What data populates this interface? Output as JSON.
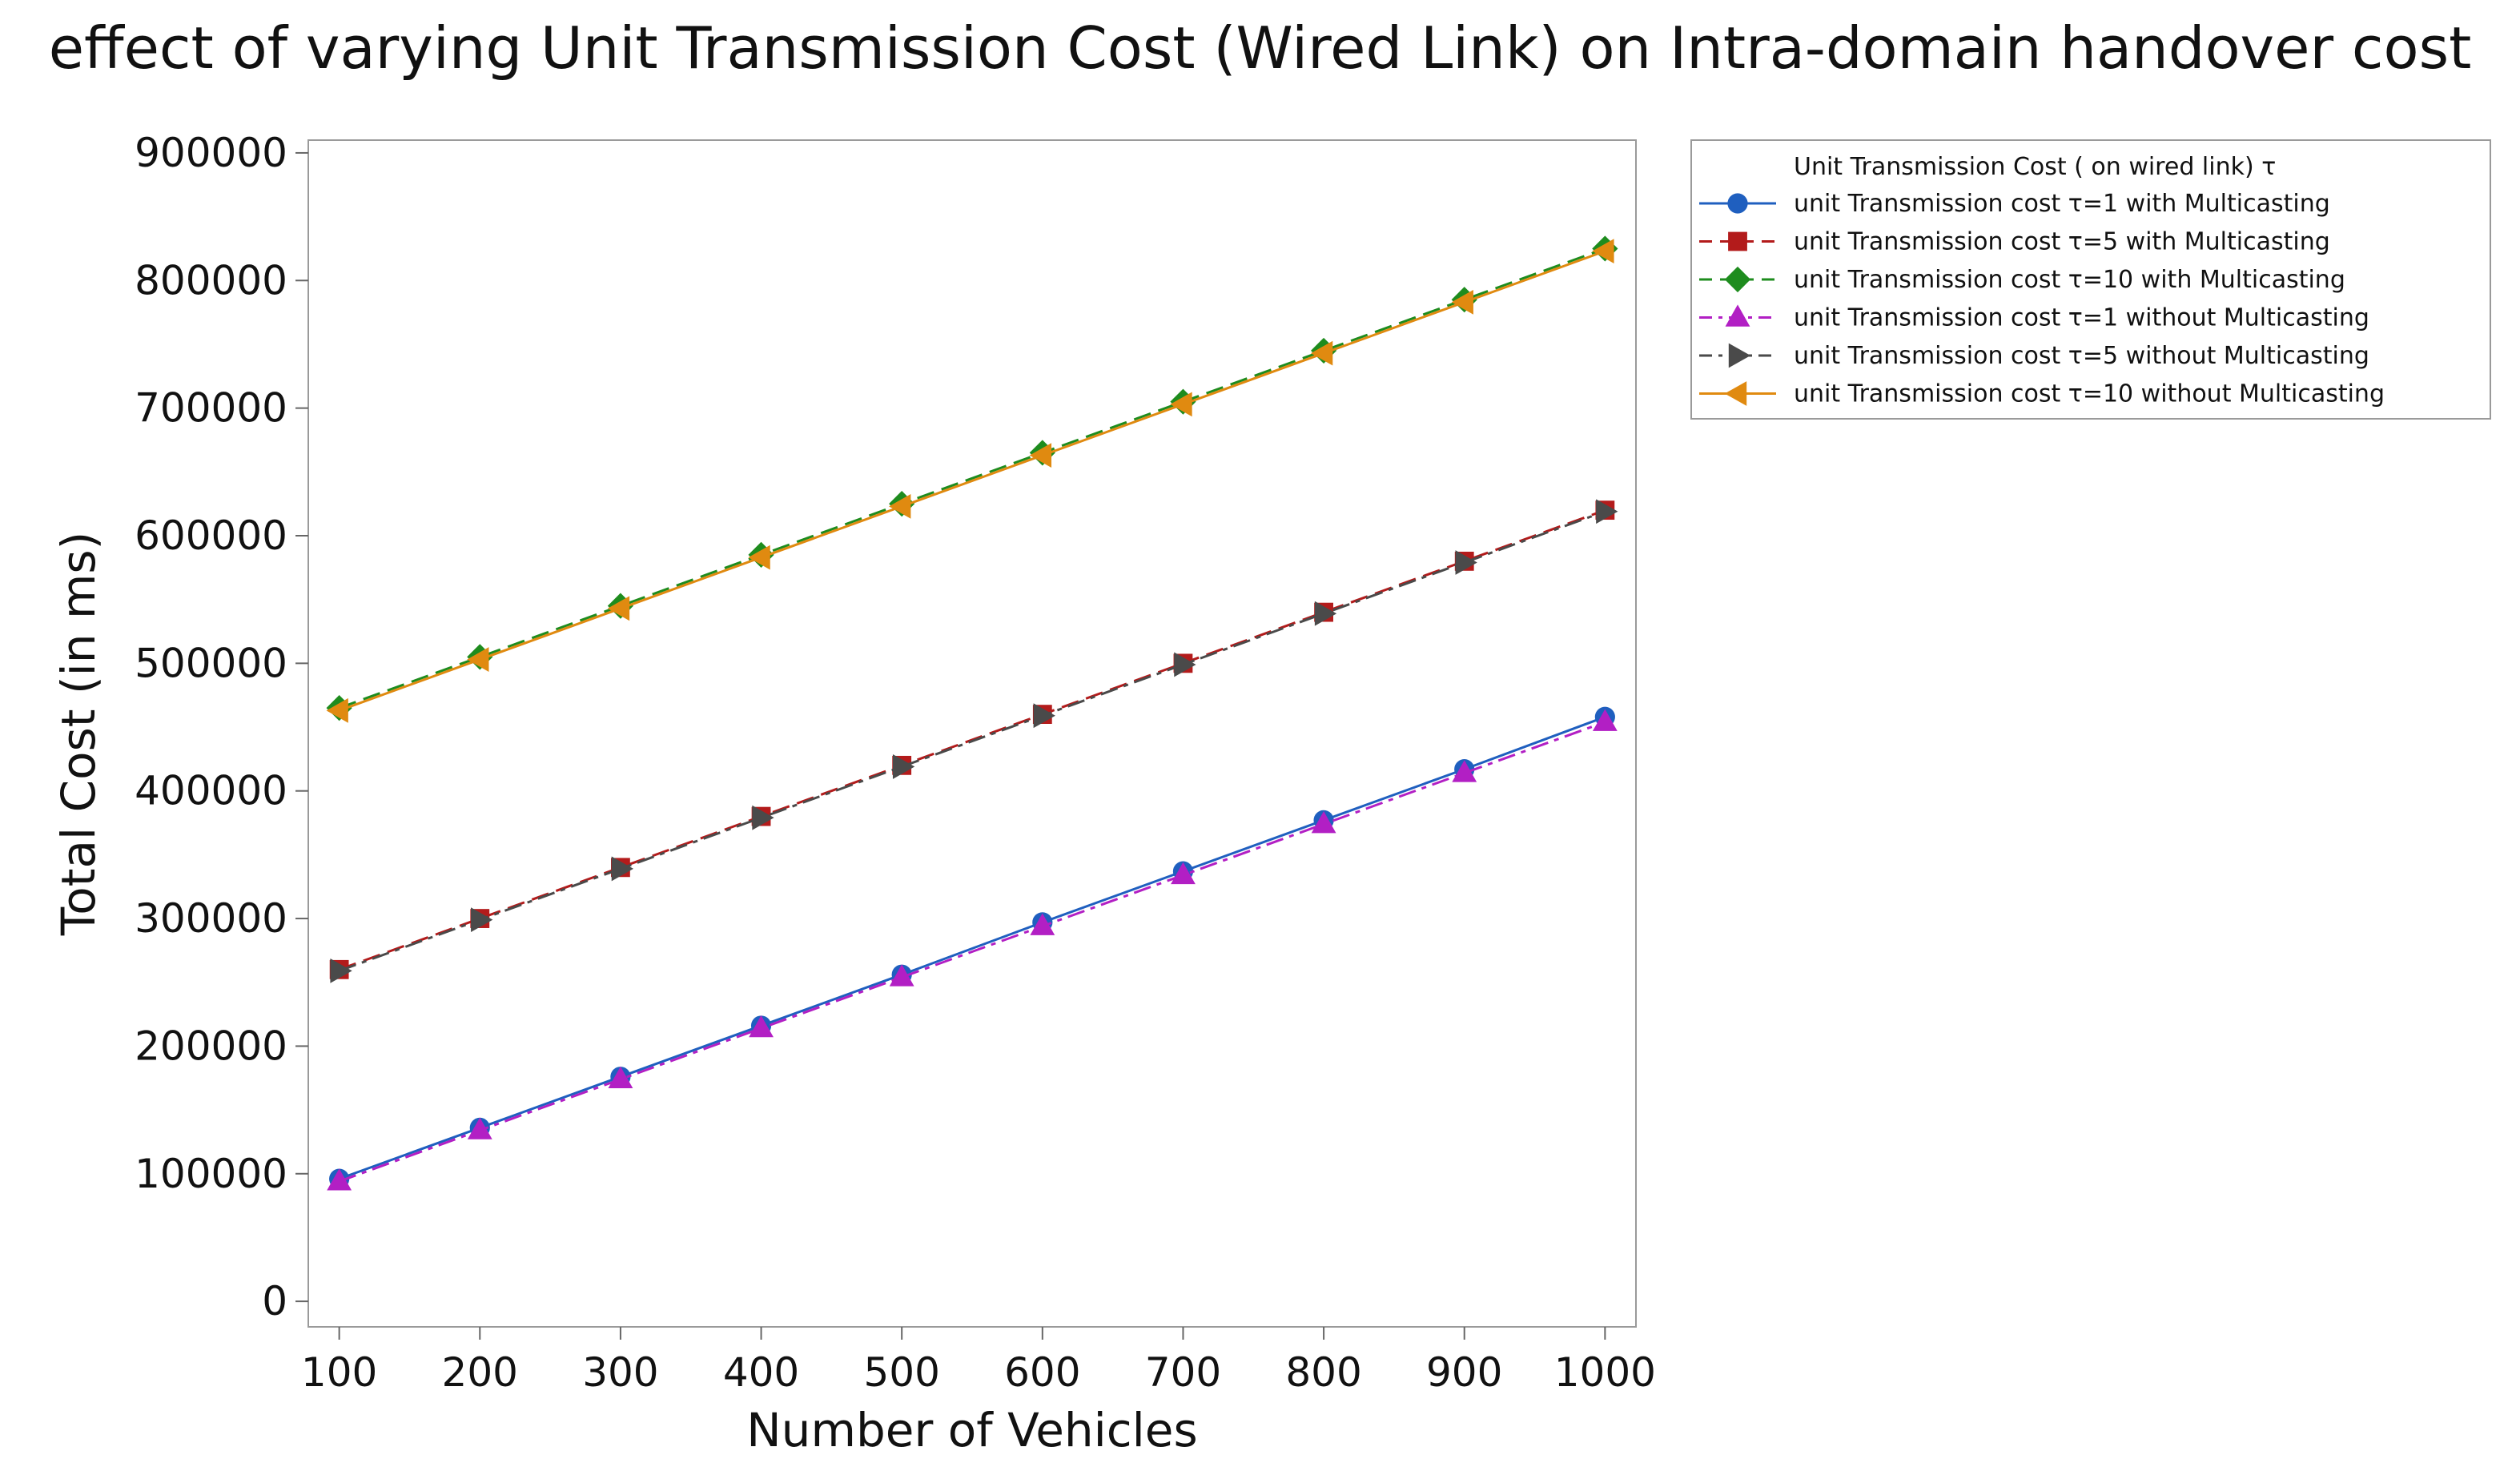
{
  "chart_data": {
    "type": "line",
    "title": "effect of varying Unit Transmission Cost (Wired Link) on Intra-domain handover cost",
    "xlabel": "Number of Vehicles",
    "ylabel": "Total Cost (in ms)",
    "x": [
      100,
      200,
      300,
      400,
      500,
      600,
      700,
      800,
      900,
      1000
    ],
    "xticks": [
      "100",
      "200",
      "300",
      "400",
      "500",
      "600",
      "700",
      "800",
      "900",
      "1000"
    ],
    "yticks": [
      "0",
      "100000",
      "200000",
      "300000",
      "400000",
      "500000",
      "600000",
      "700000",
      "800000",
      "900000"
    ],
    "xlim": [
      78,
      1022
    ],
    "ylim": [
      -20000,
      910000
    ],
    "legend_title": "Unit Transmission Cost ( on wired link) τ",
    "legend_position": "right-top",
    "grid": false,
    "series": [
      {
        "name": "unit Transmission cost τ=1 with Multicasting",
        "color": "#1f5fbf",
        "marker": "circle",
        "dash": "solid",
        "values": [
          96000,
          136000,
          176000,
          216000,
          256000,
          297000,
          337000,
          377000,
          417000,
          458000
        ]
      },
      {
        "name": "unit Transmission cost τ=5 with Multicasting",
        "color": "#b31b1b",
        "marker": "square",
        "dash": "dash",
        "values": [
          260000,
          300000,
          340000,
          380000,
          420000,
          460000,
          500000,
          540000,
          580000,
          620000
        ]
      },
      {
        "name": "unit Transmission cost τ=10 with Multicasting",
        "color": "#1e8c1e",
        "marker": "diamond",
        "dash": "dash",
        "values": [
          465000,
          505000,
          545000,
          585000,
          625000,
          665000,
          705000,
          745000,
          785000,
          825000
        ]
      },
      {
        "name": "unit Transmission cost τ=1  without Multicasting",
        "color": "#b21fc4",
        "marker": "triangle-up",
        "dash": "dashdot",
        "values": [
          94000,
          134000,
          174000,
          214000,
          254000,
          294000,
          334000,
          374000,
          414000,
          454000
        ]
      },
      {
        "name": "unit Transmission cost τ=5 without Multicasting",
        "color": "#4a4a4a",
        "marker": "triangle-right",
        "dash": "dashdot",
        "values": [
          259000,
          299000,
          339000,
          379000,
          419000,
          459000,
          499000,
          539000,
          579000,
          619000
        ]
      },
      {
        "name": "unit Transmission cost τ=10  without Multicasting",
        "color": "#e08a10",
        "marker": "triangle-left",
        "dash": "solid",
        "values": [
          463000,
          503000,
          543000,
          583000,
          623000,
          663000,
          703000,
          743000,
          783000,
          823000
        ]
      }
    ]
  }
}
